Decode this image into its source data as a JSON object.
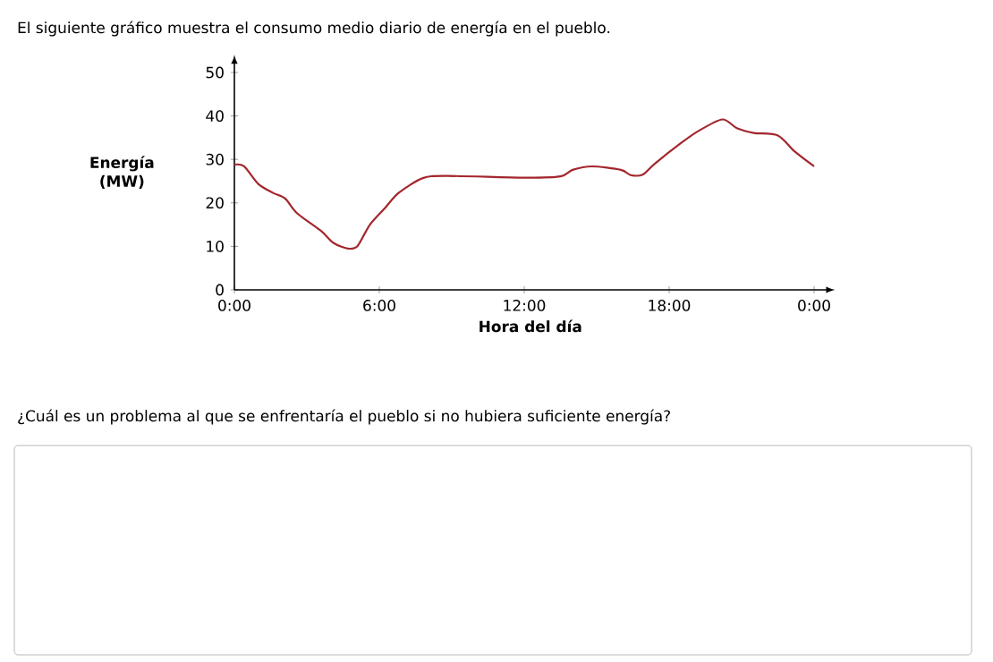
{
  "chart_data": {
    "type": "line",
    "title": "El siguiente gráfico muestra el consumo medio diario de energía en el pueblo.",
    "xlabel": "Hora del día",
    "ylabel": "Energía (MW)",
    "annotations": [
      "¿Cuál es un problema al que se enfrentaría el pueblo si no hubiera suficiente energía?"
    ],
    "x": [
      0,
      0.4,
      1.0,
      1.6,
      2.1,
      2.6,
      3.6,
      4.1,
      4.7,
      5.1,
      5.6,
      6.2,
      6.8,
      7.8,
      8.8,
      12,
      13.5,
      14,
      14.8,
      16,
      16.4,
      16.9,
      17.4,
      18.5,
      19.2,
      20.2,
      20.8,
      21.5,
      22.5,
      23.2,
      24
    ],
    "values": [
      28.8,
      28.4,
      24.3,
      22.3,
      21,
      17.6,
      13.5,
      10.8,
      9.5,
      10.1,
      14.9,
      18.6,
      22.3,
      25.7,
      26.2,
      25.8,
      26.1,
      27.6,
      28.4,
      27.6,
      26.4,
      26.5,
      29,
      33.8,
      36.5,
      39.2,
      37.2,
      36.1,
      35.5,
      31.8,
      28.4
    ],
    "color": "#a3262c",
    "line_style": "solid",
    "xlim": [
      0,
      24.5
    ],
    "ylim": [
      0,
      52
    ],
    "xticks": [
      {
        "value": 0,
        "label": "0:00"
      },
      {
        "value": 6,
        "label": "6:00"
      },
      {
        "value": 12,
        "label": "12:00"
      },
      {
        "value": 18,
        "label": "18:00"
      },
      {
        "value": 24,
        "label": "0:00"
      }
    ],
    "yticks": [
      0,
      10,
      20,
      30,
      40,
      50
    ]
  }
}
